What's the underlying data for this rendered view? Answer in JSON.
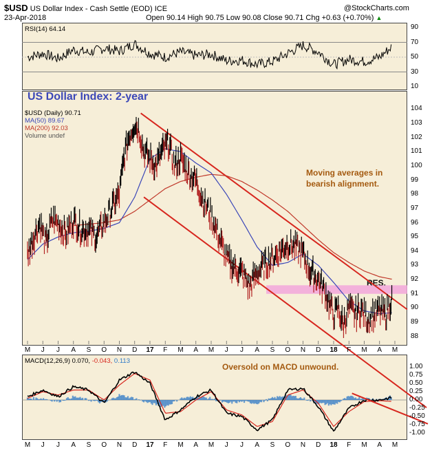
{
  "header": {
    "ticker": "$USD",
    "name": "US Dollar Index - Cash Settle (EOD) ICE",
    "date": "23-Apr-2018",
    "ohlc": "Open 90.14  High 90.75  Low 90.08  Close 90.71  Chg +0.63 (+0.70%)",
    "chg_up_icon": "triangle-up",
    "source": "@StockCharts.com"
  },
  "rsi_panel": {
    "label": "RSI(14) 64.14",
    "ticks": [
      "90",
      "70",
      "50",
      "30",
      "10"
    ]
  },
  "price_panel": {
    "title": "US Dollar Index: 2-year",
    "legend": {
      "usd": "$USD (Daily) 90.71",
      "ma50": "MA(50) 89.67",
      "ma200": "MA(200) 92.03",
      "volume": "Volume undef"
    },
    "ticks": [
      "104",
      "103",
      "102",
      "101",
      "100",
      "99",
      "98",
      "97",
      "96",
      "95",
      "94",
      "93",
      "92",
      "91",
      "90",
      "89",
      "88"
    ],
    "annotation_ma": [
      "Moving averages in",
      "bearish alignment."
    ],
    "annotation_res": "RES."
  },
  "macd_panel": {
    "label_main": "MACD(12,26,9) 0.070,",
    "label_signal": "-0.043,",
    "label_hist": "0.113",
    "annotation": "Oversold on MACD unwound.",
    "ticks": [
      "1.00",
      "0.75",
      "0.50",
      "0.25",
      "0.00",
      "-0.25",
      "-0.50",
      "-0.75",
      "-1.00"
    ]
  },
  "x_axis": {
    "months": [
      "M",
      "J",
      "J",
      "A",
      "S",
      "O",
      "N",
      "D",
      "17",
      "F",
      "M",
      "A",
      "M",
      "J",
      "J",
      "A",
      "S",
      "O",
      "N",
      "D",
      "18",
      "F",
      "M",
      "A",
      "M"
    ],
    "year_marks": [
      "17",
      "18"
    ]
  },
  "chart_data": [
    {
      "type": "line",
      "name": "RSI(14)",
      "ylim": [
        10,
        90
      ],
      "last": 64.14,
      "x_months": [
        0,
        1,
        2,
        3,
        4,
        5,
        6,
        7,
        8,
        9,
        10,
        11,
        12,
        13,
        14,
        15,
        16,
        17,
        18,
        19,
        20,
        21,
        22,
        23,
        23.8
      ],
      "values": [
        50,
        55,
        48,
        60,
        56,
        62,
        58,
        68,
        55,
        50,
        57,
        52,
        54,
        45,
        46,
        40,
        44,
        55,
        66,
        57,
        40,
        47,
        44,
        50,
        64
      ]
    },
    {
      "type": "line",
      "name": "$USD (Daily)",
      "ylim": [
        87.6,
        104.4
      ],
      "last": 90.71,
      "x_months": [
        0,
        0.4,
        0.8,
        1.2,
        1.6,
        2,
        2.5,
        3,
        3.5,
        4,
        4.5,
        5,
        5.5,
        6,
        6.3,
        6.6,
        7,
        7.3,
        7.6,
        8,
        8.4,
        8.8,
        9.2,
        9.6,
        10,
        10.5,
        11,
        11.5,
        12,
        12.5,
        13,
        13.5,
        14,
        14.5,
        15,
        15.5,
        16,
        16.5,
        17,
        17.5,
        18,
        18.5,
        19,
        19.5,
        20,
        20.3,
        20.6,
        21,
        21.4,
        21.8,
        22.2,
        22.6,
        23,
        23.4,
        23.8
      ],
      "values": [
        93.8,
        95.0,
        96.0,
        94.5,
        96.2,
        96.0,
        95.2,
        96.2,
        95.5,
        95.5,
        95.0,
        96.0,
        97.0,
        98.0,
        100.5,
        102.0,
        103.0,
        102.5,
        101.0,
        100.5,
        100.0,
        101.0,
        101.6,
        100.0,
        100.5,
        99.5,
        99.0,
        97.5,
        96.5,
        95.0,
        93.5,
        92.8,
        92.5,
        91.5,
        92.5,
        93.0,
        93.5,
        94.0,
        94.5,
        94.3,
        93.8,
        92.5,
        92.0,
        91.0,
        89.5,
        90.0,
        88.8,
        90.0,
        89.6,
        89.9,
        89.2,
        89.5,
        89.8,
        89.5,
        90.71
      ]
    },
    {
      "type": "line",
      "name": "MA(50)",
      "last": 89.67,
      "x_months": [
        0,
        1,
        2,
        3,
        4,
        5,
        6,
        7,
        8,
        9,
        10,
        11,
        12,
        13,
        14,
        15,
        16,
        17,
        18,
        19,
        20,
        21,
        22,
        23,
        23.8
      ],
      "values": [
        93.4,
        94.5,
        95.0,
        95.3,
        95.4,
        95.6,
        96.0,
        97.8,
        100.5,
        101.2,
        101.0,
        100.2,
        99.5,
        98.0,
        96.2,
        94.3,
        93.0,
        93.2,
        93.8,
        93.0,
        91.8,
        90.5,
        89.8,
        89.6,
        89.67
      ]
    },
    {
      "type": "line",
      "name": "MA(200)",
      "last": 92.03,
      "x_months": [
        3,
        4,
        5,
        6,
        7,
        8,
        9,
        10,
        11,
        12,
        13,
        14,
        15,
        16,
        17,
        18,
        19,
        20,
        21,
        22,
        23,
        23.8
      ],
      "values": [
        95.8,
        95.9,
        96.0,
        96.2,
        96.8,
        97.6,
        98.4,
        98.9,
        99.2,
        99.4,
        99.3,
        98.9,
        98.3,
        97.6,
        96.8,
        95.8,
        94.8,
        93.9,
        93.2,
        92.6,
        92.2,
        92.03
      ]
    },
    {
      "type": "line",
      "name": "MACD(12,26,9)",
      "ylim": [
        -1.1,
        1.1
      ],
      "last_macd": 0.07,
      "last_signal": -0.043,
      "last_hist": 0.113,
      "x_months": [
        0,
        1,
        2,
        3,
        4,
        5,
        6,
        7,
        8,
        9,
        10,
        11,
        12,
        13,
        14,
        15,
        16,
        17,
        18,
        19,
        20,
        21,
        22,
        23,
        23.8
      ],
      "macd": [
        0.1,
        0.3,
        0.1,
        0.4,
        0.3,
        -0.1,
        0.6,
        0.85,
        0.5,
        -0.6,
        -0.3,
        0.1,
        0.3,
        -0.4,
        -0.5,
        -0.9,
        -0.6,
        0.3,
        0.35,
        -0.2,
        -0.95,
        -0.25,
        0.0,
        0.0,
        0.07
      ],
      "signal": [
        0.05,
        0.25,
        0.15,
        0.3,
        0.3,
        0.0,
        0.45,
        0.8,
        0.6,
        -0.4,
        -0.35,
        0.0,
        0.25,
        -0.3,
        -0.45,
        -0.8,
        -0.65,
        0.15,
        0.3,
        -0.1,
        -0.8,
        -0.35,
        -0.05,
        -0.02,
        -0.043
      ]
    }
  ]
}
